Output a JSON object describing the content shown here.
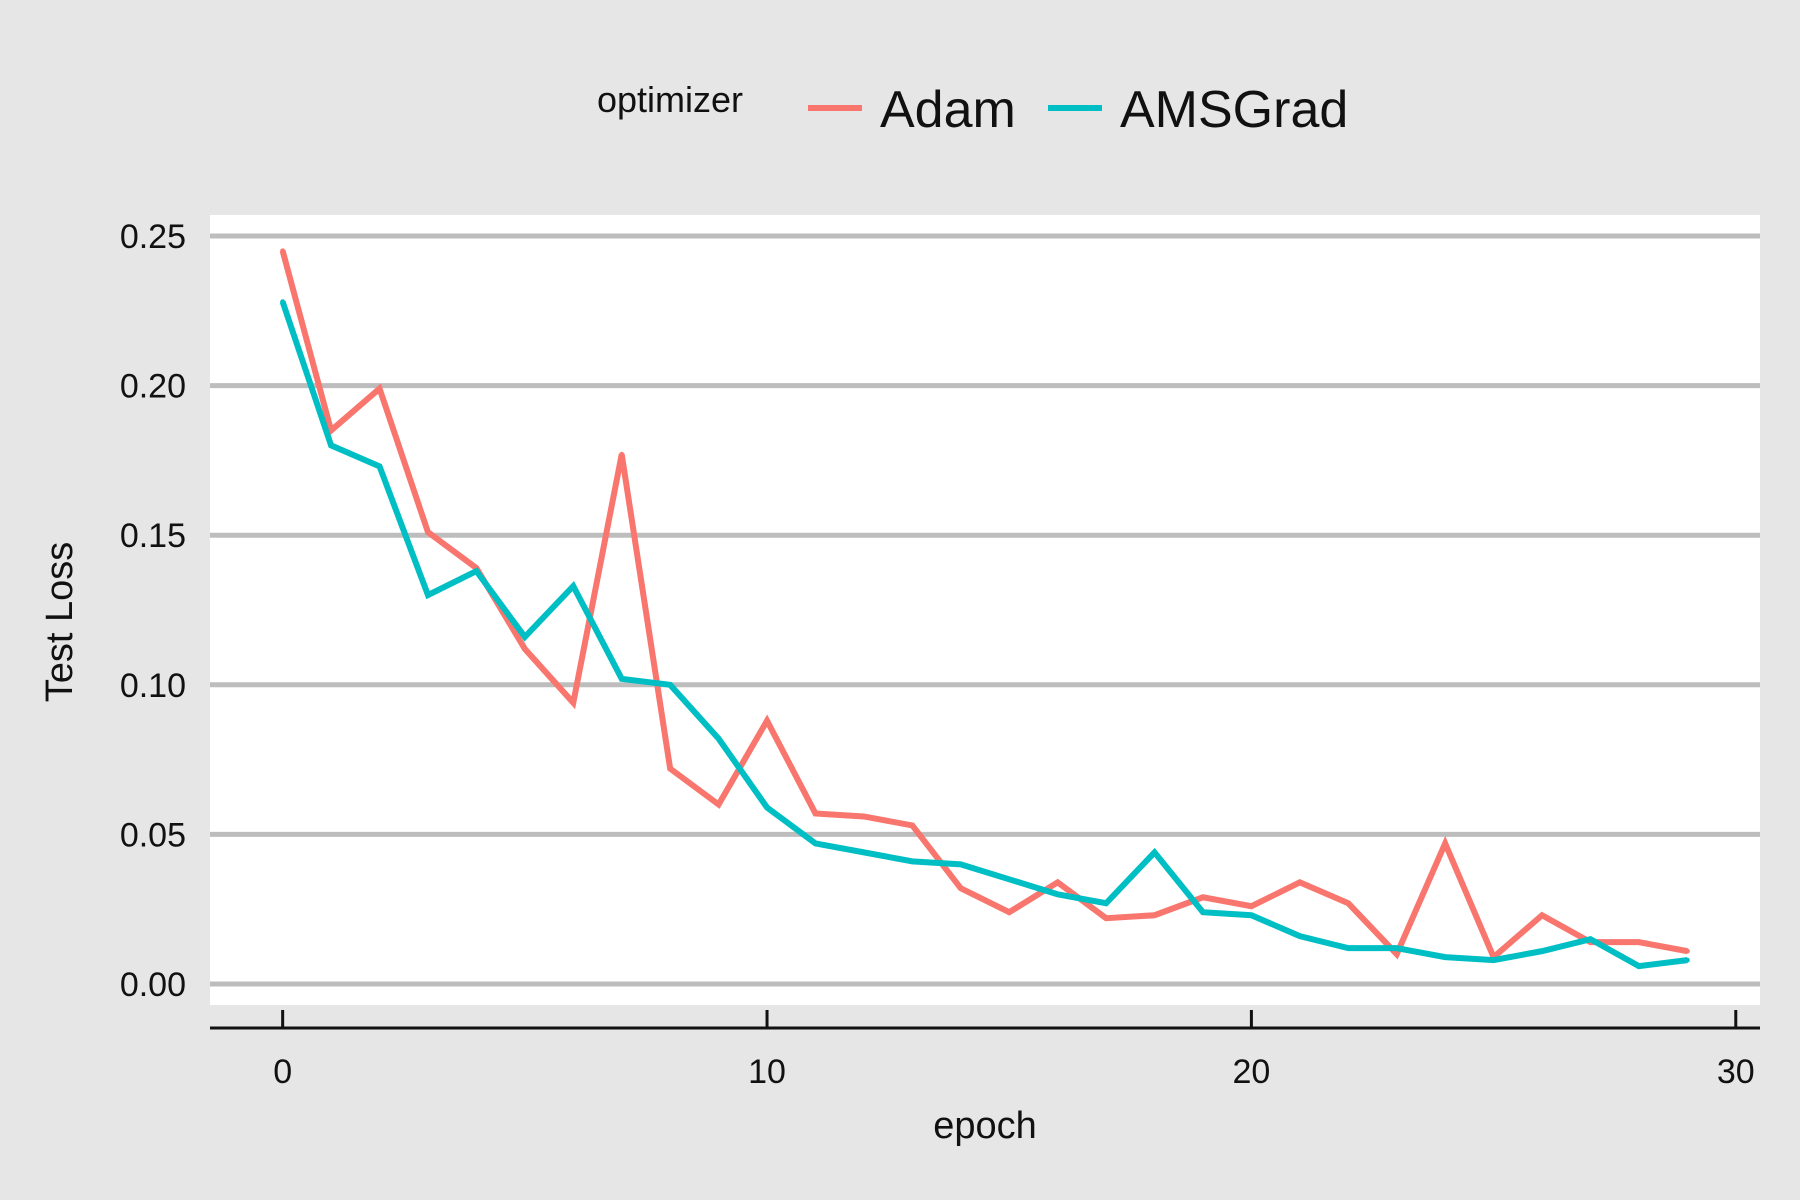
{
  "chart_data": {
    "type": "line",
    "title": "",
    "xlabel": "epoch",
    "ylabel": "Test Loss",
    "xlim": [
      -1.5,
      30.5
    ],
    "ylim": [
      -0.007,
      0.257
    ],
    "xticks": [
      0,
      10,
      20,
      30
    ],
    "xtick_labels": [
      "0",
      "10",
      "20",
      "30"
    ],
    "yticks": [
      0,
      0.05,
      0.1,
      0.15,
      0.2,
      0.25
    ],
    "ytick_labels": [
      "0.00",
      "0.05",
      "0.10",
      "0.15",
      "0.20",
      "0.25"
    ],
    "grid": "horizontal",
    "legend": {
      "title": "optimizer",
      "position": "top"
    },
    "x": [
      0,
      1,
      2,
      3,
      4,
      5,
      6,
      7,
      8,
      9,
      10,
      11,
      12,
      13,
      14,
      15,
      16,
      17,
      18,
      19,
      20,
      21,
      22,
      23,
      24,
      25,
      26,
      27,
      28,
      29
    ],
    "series": [
      {
        "name": "Adam",
        "color": "#F8766D",
        "values": [
          0.245,
          0.185,
          0.199,
          0.151,
          0.139,
          0.112,
          0.094,
          0.177,
          0.072,
          0.06,
          0.088,
          0.057,
          0.056,
          0.053,
          0.032,
          0.024,
          0.034,
          0.022,
          0.023,
          0.029,
          0.026,
          0.034,
          0.027,
          0.01,
          0.047,
          0.009,
          0.023,
          0.014,
          0.014,
          0.011
        ]
      },
      {
        "name": "AMSGrad",
        "color": "#00BFC4",
        "values": [
          0.228,
          0.18,
          0.173,
          0.13,
          0.138,
          0.116,
          0.133,
          0.102,
          0.1,
          0.082,
          0.059,
          0.047,
          0.044,
          0.041,
          0.04,
          0.035,
          0.03,
          0.027,
          0.044,
          0.024,
          0.023,
          0.016,
          0.012,
          0.012,
          0.009,
          0.008,
          0.011,
          0.015,
          0.006,
          0.008
        ]
      }
    ]
  }
}
